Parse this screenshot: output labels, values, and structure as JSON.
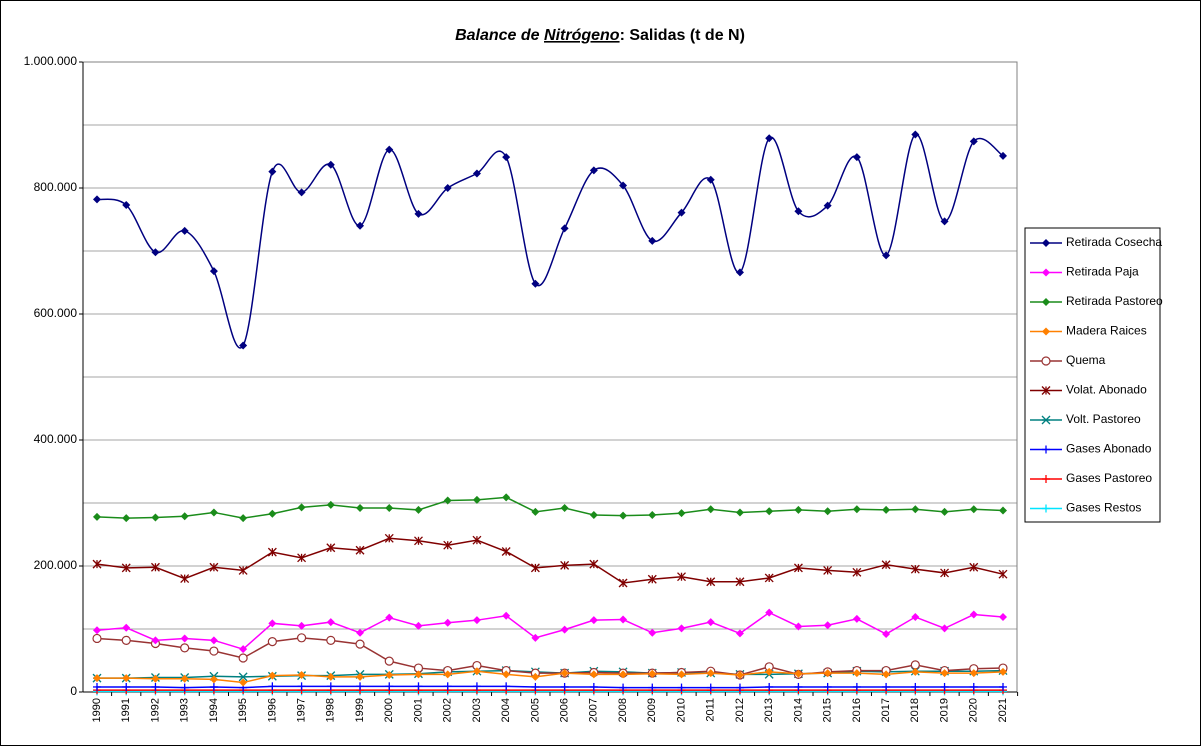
{
  "chart_data": {
    "type": "line",
    "title_parts": [
      "Balance de ",
      "Nitrógeno",
      ": Salidas (t de N)"
    ],
    "categories": [
      "1990",
      "1991",
      "1992",
      "1993",
      "1994",
      "1995",
      "1996",
      "1997",
      "1998",
      "1999",
      "2000",
      "2001",
      "2002",
      "2003",
      "2004",
      "2005",
      "2006",
      "2007",
      "2008",
      "2009",
      "2010",
      "2011",
      "2012",
      "2013",
      "2014",
      "2015",
      "2016",
      "2017",
      "2018",
      "2019",
      "2020",
      "2021"
    ],
    "ylim": [
      0,
      1000000
    ],
    "yticks": [
      0,
      {
        "value": 200000,
        "label": "200.000"
      },
      {
        "value": 400000,
        "label": "400.000"
      },
      {
        "value": 600000,
        "label": "600.000"
      },
      {
        "value": 800000,
        "label": "800.000"
      },
      {
        "value": 1000000,
        "label": "1.000.000"
      }
    ],
    "minor_gridlines": [
      100000,
      300000,
      500000,
      700000,
      900000
    ],
    "grid": true,
    "legend": "right",
    "series": [
      {
        "name": "Retirada Cosecha",
        "color": "#000080",
        "marker": "diamond",
        "smooth": true,
        "values": [
          782000,
          773000,
          698000,
          732000,
          668000,
          550000,
          826000,
          793000,
          837000,
          740000,
          861000,
          759000,
          800000,
          823000,
          849000,
          648000,
          736000,
          828000,
          804000,
          716000,
          761000,
          813000,
          666000,
          879000,
          763000,
          772000,
          849000,
          693000,
          885000,
          747000,
          874000,
          851000
        ]
      },
      {
        "name": "Retirada Paja",
        "color": "#ff00ff",
        "marker": "diamond",
        "smooth": false,
        "values": [
          98000,
          102000,
          82000,
          85000,
          82000,
          68000,
          109000,
          105000,
          111000,
          94000,
          118000,
          105000,
          110000,
          114000,
          121000,
          86000,
          99000,
          114000,
          115000,
          94000,
          101000,
          111000,
          93000,
          126000,
          104000,
          106000,
          116000,
          92000,
          119000,
          101000,
          123000,
          119000
        ]
      },
      {
        "name": "Retirada Pastoreo",
        "color": "#1a8c1a",
        "marker": "diamond",
        "smooth": false,
        "values": [
          278000,
          276000,
          277000,
          279000,
          285000,
          276000,
          283000,
          293000,
          297000,
          292000,
          292000,
          289000,
          304000,
          305000,
          309000,
          286000,
          292000,
          281000,
          280000,
          281000,
          284000,
          290000,
          285000,
          287000,
          289000,
          287000,
          290000,
          289000,
          290000,
          286000,
          290000,
          288000
        ]
      },
      {
        "name": "Madera Raices",
        "color": "#ff8000",
        "marker": "diamond",
        "smooth": false,
        "values": [
          22000,
          22000,
          21000,
          21000,
          20000,
          15000,
          26000,
          27000,
          24000,
          24000,
          27000,
          28000,
          28000,
          33000,
          28000,
          24000,
          30000,
          28000,
          28000,
          29000,
          28000,
          30000,
          27000,
          32000,
          29000,
          30000,
          30000,
          28000,
          32000,
          30000,
          30000,
          32000
        ]
      },
      {
        "name": "Quema",
        "color": "#993333",
        "marker": "circle",
        "smooth": false,
        "values": [
          85000,
          82000,
          77000,
          70000,
          65000,
          54000,
          80000,
          86000,
          82000,
          76000,
          49000,
          38000,
          34000,
          42000,
          34000,
          30000,
          30000,
          31000,
          30000,
          30000,
          31000,
          33000,
          27000,
          40000,
          28000,
          32000,
          34000,
          34000,
          43000,
          34000,
          37000,
          38000
        ]
      },
      {
        "name": "Volat. Abonado",
        "color": "#800000",
        "marker": "star",
        "smooth": false,
        "values": [
          203000,
          197000,
          198000,
          180000,
          198000,
          193000,
          222000,
          213000,
          229000,
          225000,
          244000,
          240000,
          233000,
          241000,
          223000,
          197000,
          201000,
          203000,
          173000,
          179000,
          183000,
          175000,
          175000,
          181000,
          197000,
          193000,
          190000,
          202000,
          195000,
          189000,
          198000,
          187000
        ]
      },
      {
        "name": "Volt. Pastoreo",
        "color": "#008080",
        "marker": "asterisk",
        "smooth": false,
        "values": [
          22000,
          22000,
          23000,
          23000,
          25000,
          24000,
          25000,
          26000,
          26000,
          28000,
          28000,
          29000,
          32000,
          33000,
          34000,
          32000,
          30000,
          33000,
          32000,
          30000,
          31000,
          30000,
          28000,
          28000,
          29000,
          30000,
          33000,
          32000,
          33000,
          33000,
          33000,
          34000
        ]
      },
      {
        "name": "Gases Abonado",
        "color": "#0000ff",
        "marker": "plus",
        "smooth": false,
        "values": [
          8000,
          8000,
          8000,
          7000,
          8000,
          7000,
          9000,
          9000,
          9000,
          9000,
          9000,
          9000,
          9000,
          9000,
          9000,
          8000,
          8000,
          8000,
          7000,
          7000,
          7000,
          7000,
          7000,
          8000,
          8000,
          8000,
          8000,
          8000,
          8000,
          8000,
          8000,
          8000
        ]
      },
      {
        "name": "Gases Pastoreo",
        "color": "#ff0000",
        "marker": "plus",
        "smooth": false,
        "values": [
          3000,
          3000,
          3000,
          3000,
          3000,
          3000,
          3000,
          3000,
          3000,
          3000,
          3000,
          3000,
          3000,
          3000,
          3000,
          3000,
          3000,
          3000,
          3000,
          3000,
          3000,
          3000,
          3000,
          3000,
          3000,
          3000,
          3000,
          3000,
          3000,
          3000,
          3000,
          3000
        ]
      },
      {
        "name": "Gases Restos",
        "color": "#00e5ff",
        "marker": "plus",
        "smooth": false,
        "values": [
          1000,
          1000,
          1000,
          1000,
          1000,
          1000,
          1000,
          1000,
          1000,
          1000,
          1000,
          1000,
          1000,
          1000,
          1000,
          1000,
          1000,
          1000,
          1000,
          1000,
          1000,
          1000,
          1000,
          1000,
          1000,
          1000,
          1000,
          1000,
          1000,
          1000,
          1000,
          1000
        ]
      }
    ]
  }
}
